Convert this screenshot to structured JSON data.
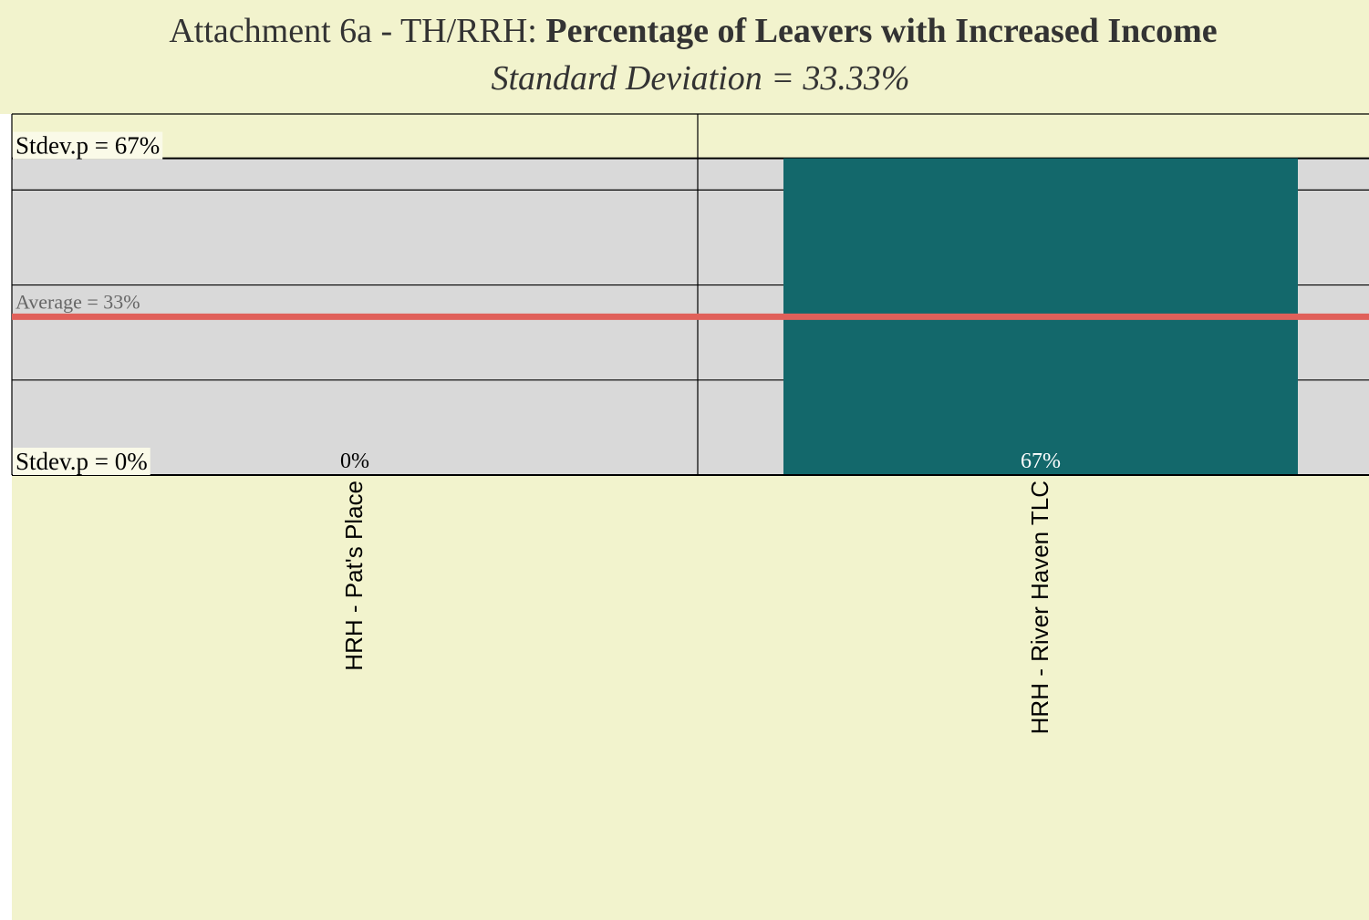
{
  "chart_data": {
    "type": "bar",
    "title_prefix": "Attachment 6a - TH/RRH:",
    "title": "Percentage of Leavers with Increased Income",
    "subtitle": "Standard Deviation = 33.33%",
    "categories": [
      "HRH - Pat's Place",
      "HRH - River Haven TLC"
    ],
    "values": [
      0,
      66.67
    ],
    "value_labels": [
      "0%",
      "67%"
    ],
    "color": "#13686b",
    "ylim": [
      0,
      76
    ],
    "yticks": [
      0,
      20,
      40,
      60
    ],
    "grid": true,
    "average": {
      "value": 33.33,
      "label": "Average = 33%",
      "color": "#e0605a"
    },
    "band": {
      "lower": 0,
      "upper": 66.67,
      "lower_label": "Stdev.p = 0%",
      "upper_label": "Stdev.p = 67%",
      "color": "#d9d9d9"
    }
  }
}
